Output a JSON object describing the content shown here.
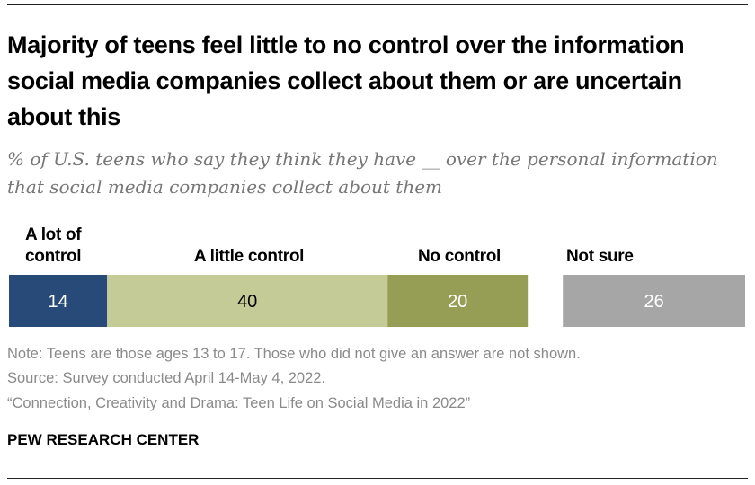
{
  "title": "Majority of teens feel little to no control over the information social media companies collect about them or are uncertain about this",
  "subtitle": "% of U.S. teens who say they think they have __ over the personal information that social media companies collect about them",
  "chart_data": {
    "type": "bar",
    "orientation": "horizontal-stacked",
    "categories": [
      "A lot of control",
      "A little control",
      "No control",
      "Not sure"
    ],
    "values": [
      14,
      40,
      20,
      26
    ],
    "colors": [
      "#284A78",
      "#C5CB96",
      "#969E55",
      "#A6A6A6"
    ],
    "label_colors": [
      "#ffffff",
      "#000000",
      "#ffffff",
      "#ffffff"
    ]
  },
  "notes": {
    "note": "Note: Teens are those ages 13 to 17. Those who did not give an answer are not shown.",
    "source": "Source: Survey conducted April 14-May 4, 2022.",
    "report": "“Connection, Creativity and Drama: Teen Life on Social Media in 2022”"
  },
  "brand": "PEW RESEARCH CENTER"
}
